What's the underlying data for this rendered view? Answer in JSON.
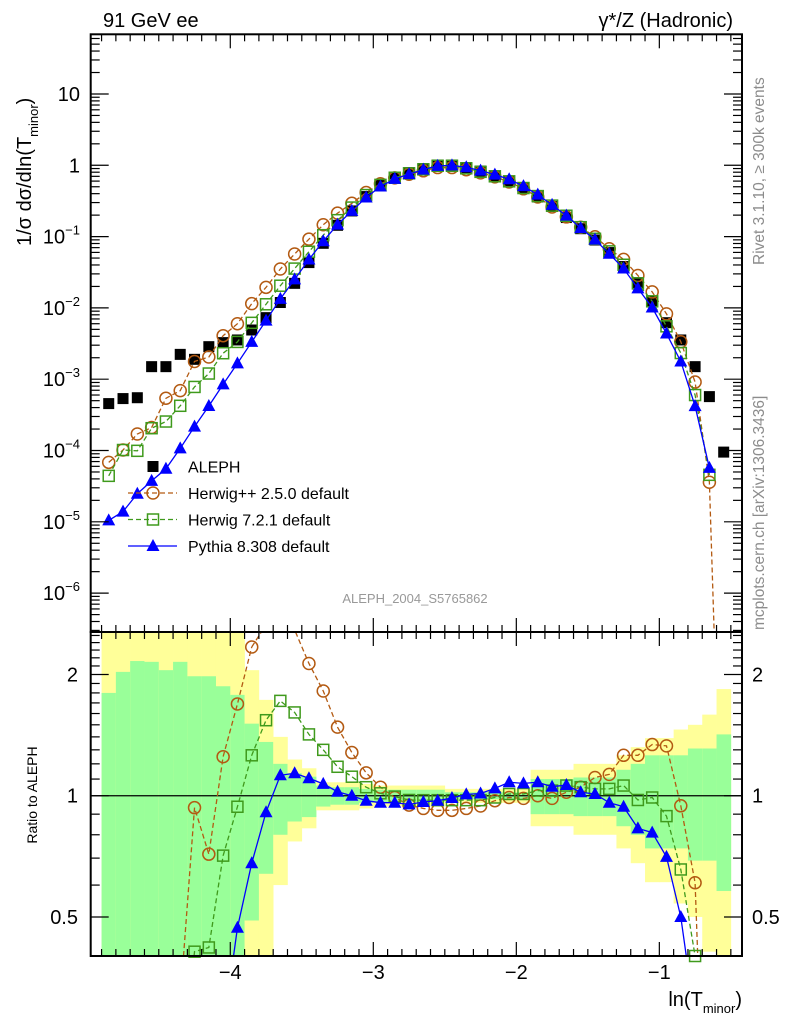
{
  "chart_data": {
    "type": "line",
    "title_left": "91 GeV ee",
    "title_right": "γ*/Z (Hadronic)",
    "side_text_top": "Rivet 3.1.10, ≥ 300k events",
    "side_text_bottom": "mcplots.cern.ch [arXiv:1306.3436]",
    "analysis_label": "ALEPH_2004_S5765862",
    "ylabel": {
      "text": "1/σ  dσ/dln(T",
      "sub": "minor",
      "close": ")"
    },
    "xlabel": {
      "text": "ln(T",
      "sub": "minor",
      "close": ")"
    },
    "ratio_ylabel": "Ratio to ALEPH",
    "xlim": [
      -4.976,
      -0.422
    ],
    "ylim": [
      2.85e-07,
      68.7
    ],
    "yscale": "log",
    "ratio_ylim": [
      0.4,
      2.55
    ],
    "ratio_yscale": "log2",
    "bin_width": 0.1,
    "xticks": {
      "values": [
        -4,
        -3,
        -2,
        -1
      ],
      "labels": [
        "−4",
        "−3",
        "−2",
        "−1"
      ]
    },
    "yticks": {
      "values": [
        10,
        1,
        0.1,
        0.01,
        0.001,
        0.0001,
        1e-05,
        1e-06
      ],
      "labels": [
        {
          "base": "10",
          "exp": ""
        },
        {
          "base": "1",
          "exp": ""
        },
        {
          "base": "10",
          "exp": "−1"
        },
        {
          "base": "10",
          "exp": "−2"
        },
        {
          "base": "10",
          "exp": "−3"
        },
        {
          "base": "10",
          "exp": "−4"
        },
        {
          "base": "10",
          "exp": "−5"
        },
        {
          "base": "10",
          "exp": "−6"
        }
      ]
    },
    "ratio_yticks": {
      "values": [
        2,
        1,
        0.5
      ],
      "labels": [
        "2",
        "1",
        "0.5"
      ]
    },
    "x": [
      -4.85,
      -4.75,
      -4.65,
      -4.55,
      -4.45,
      -4.35,
      -4.25,
      -4.15,
      -4.05,
      -3.95,
      -3.85,
      -3.75,
      -3.65,
      -3.55,
      -3.45,
      -3.35,
      -3.25,
      -3.15,
      -3.05,
      -2.95,
      -2.85,
      -2.75,
      -2.65,
      -2.55,
      -2.45,
      -2.35,
      -2.25,
      -2.15,
      -2.05,
      -1.95,
      -1.85,
      -1.75,
      -1.65,
      -1.55,
      -1.45,
      -1.35,
      -1.25,
      -1.15,
      -1.05,
      -0.95,
      -0.85,
      -0.75,
      -0.65,
      -0.55
    ],
    "reference": {
      "name": "ALEPH",
      "values": [
        0.000455,
        0.000535,
        0.00055,
        0.0015,
        0.0015,
        0.00223,
        0.0019,
        0.00286,
        0.00326,
        0.00355,
        0.0049,
        0.0073,
        0.0119,
        0.0221,
        0.0432,
        0.0805,
        0.144,
        0.229,
        0.364,
        0.524,
        0.672,
        0.79,
        0.9,
        1.01,
        1.01,
        0.93,
        0.83,
        0.708,
        0.59,
        0.475,
        0.359,
        0.264,
        0.185,
        0.129,
        0.0896,
        0.0597,
        0.038,
        0.0226,
        0.0125,
        0.0062,
        0.00355,
        0.0015,
        0.00057,
        9.5e-05
      ],
      "band_inner_rel_err": [
        0.8,
        1.03,
        1.16,
        1.15,
        1.05,
        1.15,
        0.98,
        0.98,
        0.87,
        0.78,
        0.51,
        0.36,
        0.2,
        0.137,
        0.115,
        0.06,
        0.05,
        0.05,
        0.04,
        0.035,
        0.035,
        0.035,
        0.035,
        0.035,
        0.02,
        0.02,
        0.02,
        0.02,
        0.02,
        0.02,
        0.1,
        0.1,
        0.1,
        0.11,
        0.11,
        0.11,
        0.16,
        0.2,
        0.26,
        0.26,
        0.26,
        0.31,
        0.31,
        0.42
      ],
      "band_outer_rel_err": [
        2.0,
        2.0,
        2.0,
        2.0,
        2.0,
        2.0,
        2.0,
        2.0,
        2.0,
        2.0,
        1.05,
        0.73,
        0.4,
        0.23,
        0.17,
        0.08,
        0.08,
        0.08,
        0.07,
        0.06,
        0.06,
        0.06,
        0.06,
        0.06,
        0.04,
        0.04,
        0.04,
        0.04,
        0.04,
        0.04,
        0.16,
        0.16,
        0.16,
        0.2,
        0.2,
        0.2,
        0.26,
        0.32,
        0.39,
        0.39,
        0.46,
        0.5,
        0.59,
        0.84
      ],
      "color": "#000000",
      "band_inner_color": "#99ff99",
      "band_outer_color": "#ffff99"
    },
    "series": [
      {
        "name": "Herwig++ 2.5.0 default",
        "marker": "circle",
        "line": "dashed",
        "color": "#b35a12",
        "ratio": [
          0.15,
          0.19,
          0.31,
          0.14,
          0.36,
          0.31,
          0.934,
          0.716,
          1.25,
          1.69,
          2.34,
          2.66,
          2.95,
          2.58,
          2.13,
          1.82,
          1.48,
          1.28,
          1.14,
          1.05,
          0.99,
          0.948,
          0.93,
          0.92,
          0.92,
          0.93,
          0.943,
          0.972,
          0.99,
          0.985,
          1.0,
          0.985,
          1.02,
          1.05,
          1.11,
          1.13,
          1.26,
          1.26,
          1.34,
          1.33,
          0.944,
          0.608,
          0.063,
          0
        ]
      },
      {
        "name": "Herwig 7.2.1 default",
        "marker": "square",
        "line": "dashed",
        "color": "#3f9a1c",
        "ratio": [
          0.097,
          0.19,
          0.18,
          0.137,
          0.17,
          0.19,
          0.41,
          0.42,
          0.71,
          0.939,
          1.26,
          1.54,
          1.72,
          1.61,
          1.42,
          1.3,
          1.18,
          1.115,
          1.05,
          1.014,
          0.995,
          0.976,
          0.975,
          0.975,
          0.975,
          0.975,
          0.975,
          0.99,
          1.01,
          1.01,
          1.03,
          1.03,
          1.06,
          1.05,
          1.04,
          1.04,
          1.06,
          0.976,
          0.99,
          0.89,
          0.656,
          0.4,
          0.08,
          null
        ]
      },
      {
        "name": "Pythia 8.308 default",
        "marker": "triangle",
        "line": "solid",
        "color": "#0000ff",
        "ratio": [
          0.023,
          0.026,
          0.045,
          0.025,
          0.037,
          0.048,
          0.114,
          0.147,
          0.26,
          0.47,
          0.68,
          0.91,
          1.124,
          1.137,
          1.105,
          1.07,
          1.023,
          1.0,
          0.972,
          0.961,
          0.961,
          0.952,
          0.965,
          0.972,
          0.987,
          1.008,
          1.013,
          1.043,
          1.08,
          1.073,
          1.08,
          1.053,
          1.063,
          1.02,
          1.01,
          0.961,
          0.939,
          0.83,
          0.81,
          0.705,
          0.5,
          0.28,
          0.1,
          null
        ]
      }
    ],
    "legend": {
      "placement": "lower-left",
      "entries": [
        "ALEPH",
        "Herwig++ 2.5.0 default",
        "Herwig 7.2.1 default",
        "Pythia 8.308 default"
      ]
    }
  }
}
